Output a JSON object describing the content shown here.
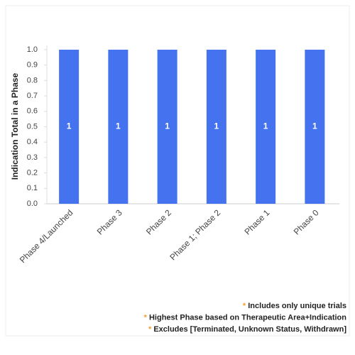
{
  "chart_data": {
    "type": "bar",
    "y_label": "Indication Total in a Phase",
    "categories": [
      "Phase 4/Launched",
      "Phase 3",
      "Phase 2",
      "Phase 1; Phase 2",
      "Phase 1",
      "Phase 0"
    ],
    "values": [
      1,
      1,
      1,
      1,
      1,
      1
    ],
    "color": "#4573f0",
    "ylim": [
      0,
      1
    ],
    "yticks": [
      {
        "value": 0,
        "label": "0.0"
      },
      0.1,
      0.2,
      0.3,
      0.4,
      0.5,
      0.6,
      0.7,
      0.8,
      0.9,
      {
        "value": 1,
        "label": "1.0"
      }
    ],
    "grid": false,
    "notes": [
      {
        "marker": "*",
        "text": "Includes only unique trials"
      },
      {
        "marker": "*",
        "text": "Highest Phase based on Therapeutic Area+Indication"
      },
      {
        "marker": "*",
        "text": "Excludes [Terminated, Unknown Status, Withdrawn]"
      }
    ]
  }
}
